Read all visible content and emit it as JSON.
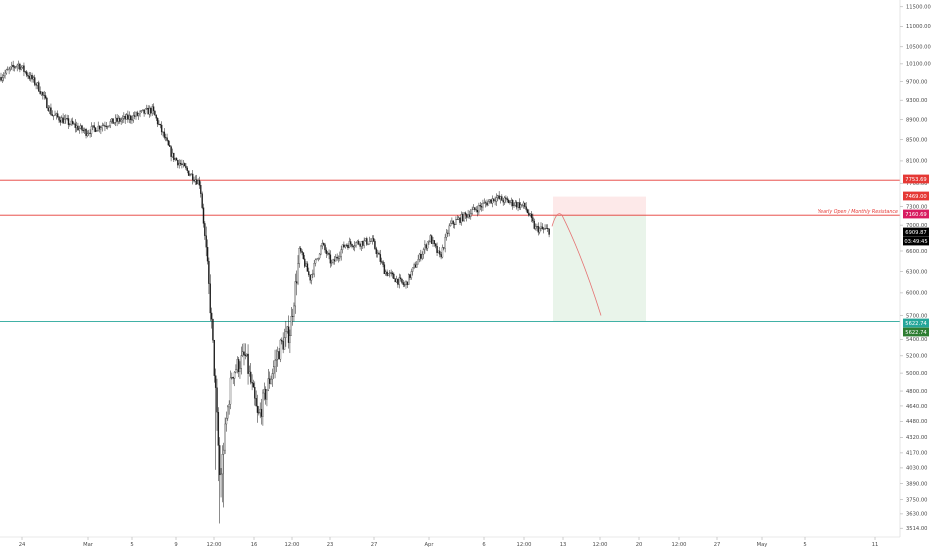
{
  "colors": {
    "background": "#ffffff",
    "candle": "#1a1a1a",
    "resistance_line": "#e53935",
    "support_line": "#26a69a",
    "stop_zone": "#fde9e9",
    "target_zone": "#e9f4ea",
    "projection": "#e57373",
    "black_tag": "#000000",
    "red_tag": "#e53935",
    "magenta_tag": "#d81b60",
    "green_tag": "#26a69a",
    "green_tag_dark": "#2e7d32"
  },
  "chart_data": {
    "type": "candlestick",
    "title": "",
    "xlabel": "",
    "ylabel": "",
    "ylim": [
      3460,
      11600
    ],
    "y_ticks": [
      "11500.00",
      "11000.00",
      "10500.00",
      "10100.00",
      "9700.00",
      "9300.00",
      "8900.00",
      "8500.00",
      "8100.00",
      "7700.00",
      "7300.00",
      "7000.00",
      "6600.00",
      "6300.00",
      "6000.00",
      "5700.00",
      "5400.00",
      "5200.00",
      "5000.00",
      "4800.00",
      "4640.00",
      "4480.00",
      "4320.00",
      "4170.00",
      "4030.00",
      "3890.00",
      "3750.00",
      "3630.00",
      "3514.00"
    ],
    "x_ticks": [
      "24",
      "Mar",
      "5",
      "9",
      "12:00",
      "16",
      "12:00",
      "23",
      "27",
      "Apr",
      "6",
      "12:00",
      "13",
      "12:00",
      "20",
      "12:00",
      "27",
      "May",
      "5",
      "11"
    ],
    "price_path": [
      {
        "label": "24",
        "value": 9800
      },
      {
        "value": 10100
      },
      {
        "value": 9600
      },
      {
        "value": 9000
      },
      {
        "value": 8800
      },
      {
        "label": "Mar",
        "value": 8650
      },
      {
        "value": 8800
      },
      {
        "label": "5",
        "value": 8950
      },
      {
        "value": 9100
      },
      {
        "label": "9",
        "value": 8200
      },
      {
        "value": 7900
      },
      {
        "label": "12:00",
        "value": 7700
      },
      {
        "value": 5500
      },
      {
        "value": 3900
      },
      {
        "value": 5000
      },
      {
        "label": "16",
        "value": 5200
      },
      {
        "value": 4500
      },
      {
        "value": 5300
      },
      {
        "label": "12:00",
        "value": 5500
      },
      {
        "value": 6600
      },
      {
        "value": 6200
      },
      {
        "value": 6700
      },
      {
        "label": "23",
        "value": 6400
      },
      {
        "value": 6700
      },
      {
        "label": "27",
        "value": 6750
      },
      {
        "value": 6300
      },
      {
        "value": 6100
      },
      {
        "label": "Apr",
        "value": 6800
      },
      {
        "value": 6500
      },
      {
        "label": "6",
        "value": 7000
      },
      {
        "value": 7200
      },
      {
        "label": "12:00",
        "value": 7450
      },
      {
        "value": 7300
      },
      {
        "value": 6950
      },
      {
        "value": 6909.87
      }
    ],
    "levels": [
      {
        "price": 7753.69,
        "style": "resistance",
        "label": "7753.69"
      },
      {
        "price": 7160.69,
        "style": "resistance",
        "label": "7160.69",
        "note": "Yearly Open / Monthly Resistance"
      },
      {
        "price": 5622.74,
        "style": "support",
        "label": "5622.74"
      }
    ],
    "position": {
      "entry": 7160.69,
      "stop": 7469.0,
      "target": 5622.74,
      "from_label": "12:00",
      "to_label": "20"
    },
    "projection": {
      "start": 6980,
      "peak": 7160,
      "end": 5700
    },
    "price_tags": [
      {
        "value": "7753.69",
        "kind": "red"
      },
      {
        "value": "7469.00",
        "kind": "red"
      },
      {
        "value": "7160.69",
        "kind": "magenta"
      },
      {
        "value": "6909.87",
        "kind": "black"
      },
      {
        "value": "03:49:45",
        "kind": "black"
      },
      {
        "value": "5622.74",
        "kind": "green"
      },
      {
        "value": "5622.74",
        "kind": "green_dark"
      }
    ],
    "grid": false,
    "legend": "none"
  }
}
